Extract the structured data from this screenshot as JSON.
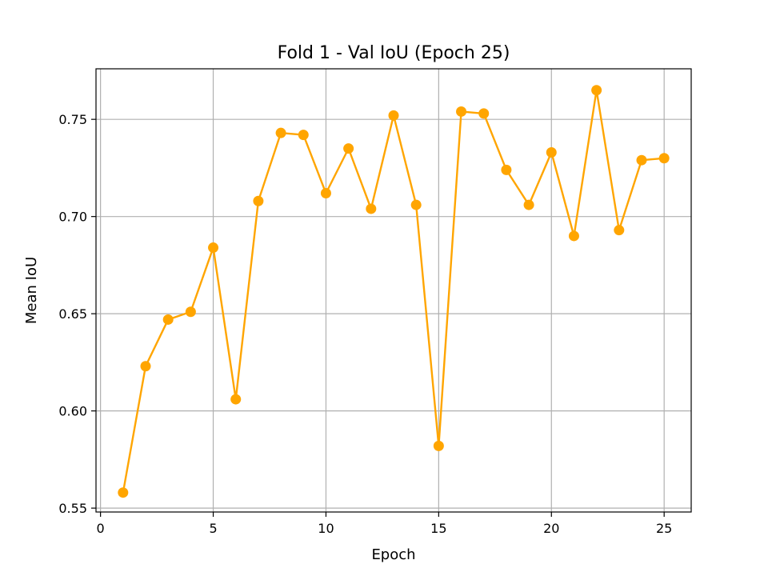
{
  "chart_data": {
    "type": "line",
    "title": "Fold 1 - Val IoU (Epoch 25)",
    "xlabel": "Epoch",
    "ylabel": "Mean IoU",
    "xlim": [
      -0.2,
      26.2
    ],
    "ylim": [
      0.548,
      0.776
    ],
    "xticks": [
      0,
      5,
      10,
      15,
      20,
      25
    ],
    "yticks": [
      0.55,
      0.6,
      0.65,
      0.7,
      0.75
    ],
    "ytick_labels": [
      "0.55",
      "0.60",
      "0.65",
      "0.70",
      "0.75"
    ],
    "grid": true,
    "line_color": "#FFA500",
    "marker": "circle",
    "series": [
      {
        "x": [
          1,
          2,
          3,
          4,
          5,
          6,
          7,
          8,
          9,
          10,
          11,
          12,
          13,
          14,
          15,
          16,
          17,
          18,
          19,
          20,
          21,
          22,
          23,
          24,
          25
        ],
        "values": [
          0.558,
          0.623,
          0.647,
          0.651,
          0.684,
          0.606,
          0.708,
          0.743,
          0.742,
          0.712,
          0.735,
          0.704,
          0.752,
          0.706,
          0.582,
          0.754,
          0.753,
          0.724,
          0.706,
          0.733,
          0.69,
          0.765,
          0.693,
          0.729,
          0.73
        ]
      }
    ]
  }
}
